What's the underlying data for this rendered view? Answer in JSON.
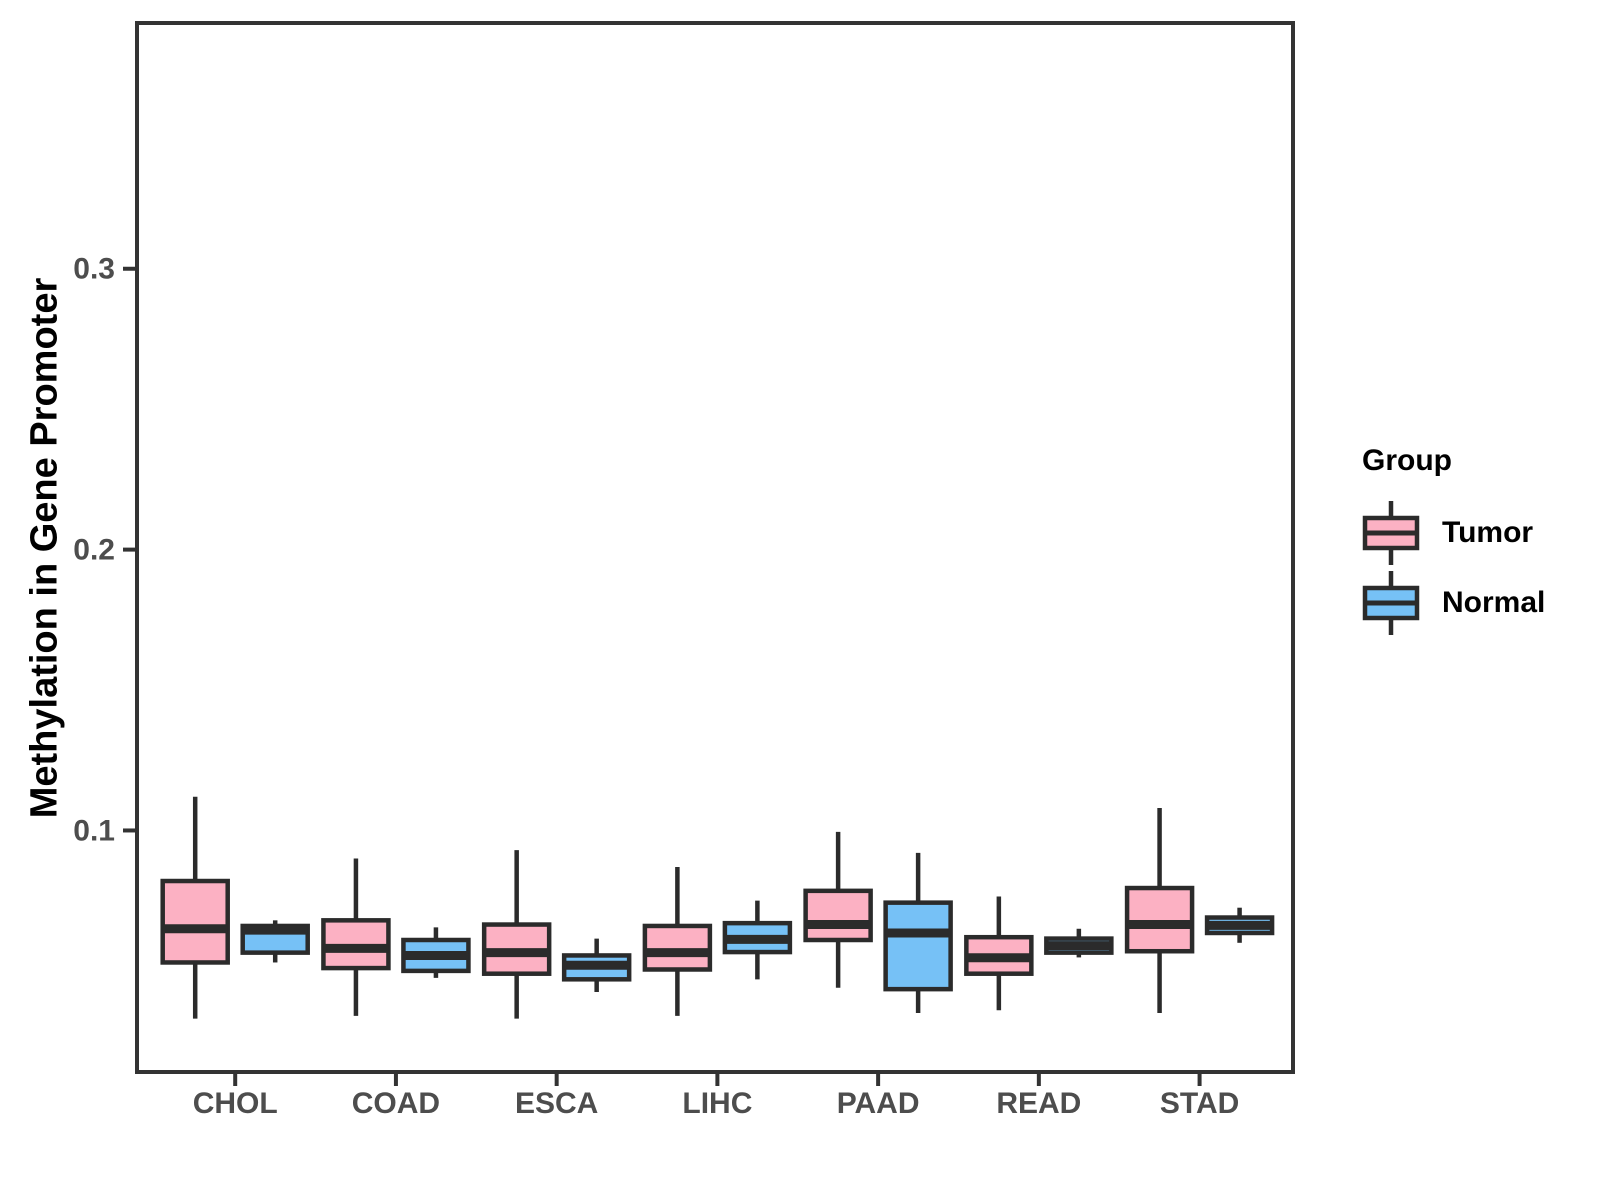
{
  "figure": {
    "y_axis_title": "Methylation in Gene Promoter",
    "legend": {
      "title": "Group",
      "entries": [
        {
          "label": "Tumor",
          "color": "#FCB1C3"
        },
        {
          "label": "Normal",
          "color": "#76C1F6"
        }
      ]
    }
  },
  "chart_data": {
    "type": "grouped_boxplot",
    "ylabel": "Methylation in Gene Promoter",
    "categories": [
      "CHOL",
      "COAD",
      "ESCA",
      "LIHC",
      "PAAD",
      "READ",
      "STAD"
    ],
    "yticks": [
      0.1,
      0.2,
      0.3
    ],
    "ylim": [
      0.014,
      0.3875
    ],
    "grid": false,
    "legend_position": "right",
    "frame_color": "#333333",
    "box_stroke_color": "#2b2b2b",
    "tick_label_color": "#4d4d4d",
    "series": [
      {
        "name": "Tumor",
        "color": "#FCB1C3",
        "boxes": [
          {
            "category": "CHOL",
            "min": 0.033,
            "q1": 0.053,
            "med": 0.065,
            "q3": 0.082,
            "max": 0.112
          },
          {
            "category": "COAD",
            "min": 0.034,
            "q1": 0.051,
            "med": 0.058,
            "q3": 0.068,
            "max": 0.09
          },
          {
            "category": "ESCA",
            "min": 0.033,
            "q1": 0.049,
            "med": 0.0565,
            "q3": 0.0665,
            "max": 0.093
          },
          {
            "category": "LIHC",
            "min": 0.034,
            "q1": 0.0505,
            "med": 0.0565,
            "q3": 0.066,
            "max": 0.087
          },
          {
            "category": "PAAD",
            "min": 0.044,
            "q1": 0.061,
            "med": 0.0665,
            "q3": 0.0785,
            "max": 0.0995
          },
          {
            "category": "READ",
            "min": 0.036,
            "q1": 0.049,
            "med": 0.0547,
            "q3": 0.062,
            "max": 0.0765
          },
          {
            "category": "STAD",
            "min": 0.035,
            "q1": 0.057,
            "med": 0.0665,
            "q3": 0.0795,
            "max": 0.108
          }
        ]
      },
      {
        "name": "Normal",
        "color": "#76C1F6",
        "boxes": [
          {
            "category": "CHOL",
            "min": 0.053,
            "q1": 0.0565,
            "med": 0.0645,
            "q3": 0.066,
            "max": 0.068
          },
          {
            "category": "COAD",
            "min": 0.0475,
            "q1": 0.05,
            "med": 0.0555,
            "q3": 0.061,
            "max": 0.0655
          },
          {
            "category": "ESCA",
            "min": 0.0425,
            "q1": 0.047,
            "med": 0.052,
            "q3": 0.0555,
            "max": 0.0615
          },
          {
            "category": "LIHC",
            "min": 0.047,
            "q1": 0.0567,
            "med": 0.0612,
            "q3": 0.067,
            "max": 0.075
          },
          {
            "category": "PAAD",
            "min": 0.035,
            "q1": 0.0435,
            "med": 0.0635,
            "q3": 0.0743,
            "max": 0.092
          },
          {
            "category": "READ",
            "min": 0.0548,
            "q1": 0.0565,
            "med": 0.059,
            "q3": 0.0615,
            "max": 0.065
          },
          {
            "category": "STAD",
            "min": 0.06,
            "q1": 0.0635,
            "med": 0.0662,
            "q3": 0.069,
            "max": 0.0725
          }
        ]
      }
    ]
  }
}
